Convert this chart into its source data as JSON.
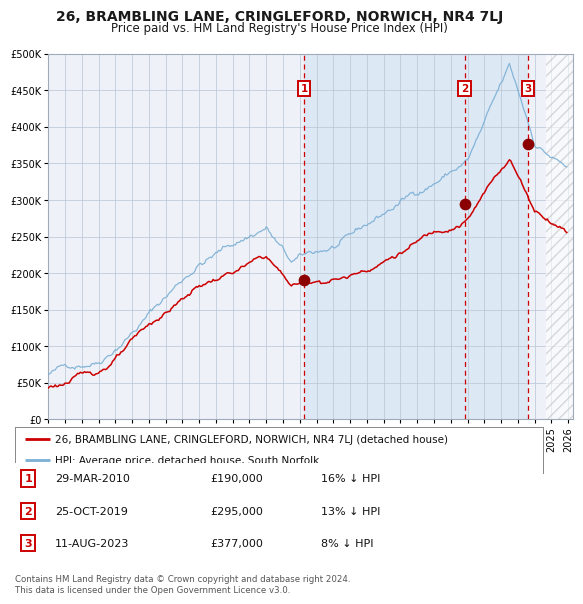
{
  "title": "26, BRAMBLING LANE, CRINGLEFORD, NORWICH, NR4 7LJ",
  "subtitle": "Price paid vs. HM Land Registry's House Price Index (HPI)",
  "ylim": [
    0,
    500000
  ],
  "yticks": [
    0,
    50000,
    100000,
    150000,
    200000,
    250000,
    300000,
    350000,
    400000,
    450000,
    500000
  ],
  "xlim_start": 1995.0,
  "xlim_end": 2026.3,
  "background_color": "#ffffff",
  "chart_bg_color": "#eef2f8",
  "highlight_color": "#dde8f5",
  "hatch_region_start": 2024.67,
  "highlight_start": 2010.25,
  "highlight_end": 2023.62,
  "sale_markers": [
    {
      "year": 2010.25,
      "value": 190000,
      "label": "1"
    },
    {
      "year": 2019.83,
      "value": 295000,
      "label": "2"
    },
    {
      "year": 2023.62,
      "value": 377000,
      "label": "3"
    }
  ],
  "vline_dates": [
    2010.25,
    2019.83,
    2023.62
  ],
  "legend_entries": [
    {
      "label": "26, BRAMBLING LANE, CRINGLEFORD, NORWICH, NR4 7LJ (detached house)",
      "color": "#cc0000",
      "lw": 1.8
    },
    {
      "label": "HPI: Average price, detached house, South Norfolk",
      "color": "#7bafd4",
      "lw": 1.5
    }
  ],
  "table_rows": [
    {
      "num": "1",
      "date": "29-MAR-2010",
      "price": "£190,000",
      "hpi": "16% ↓ HPI"
    },
    {
      "num": "2",
      "date": "25-OCT-2019",
      "price": "£295,000",
      "hpi": "13% ↓ HPI"
    },
    {
      "num": "3",
      "date": "11-AUG-2023",
      "price": "£377,000",
      "hpi": "8% ↓ HPI"
    }
  ],
  "footer": "Contains HM Land Registry data © Crown copyright and database right 2024.\nThis data is licensed under the Open Government Licence v3.0.",
  "hpi_color": "#7bafd4",
  "price_color": "#cc0000",
  "marker_color": "#8b0000",
  "vline_color": "#cc0000",
  "box_color": "#cc0000"
}
